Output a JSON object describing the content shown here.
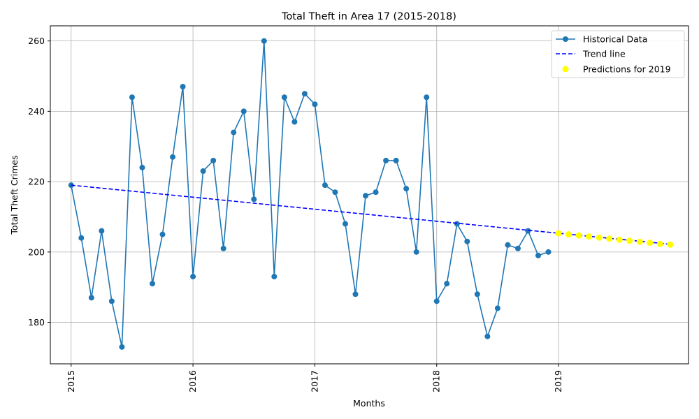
{
  "chart_data": {
    "type": "line",
    "title": "Total Theft in Area 17 (2015-2018)",
    "xlabel": "Months",
    "ylabel": "Total Theft Crimes",
    "x_ticks": [
      "2015",
      "2016",
      "2017",
      "2018",
      "2019"
    ],
    "y_ticks": [
      180,
      200,
      220,
      240,
      260
    ],
    "ylim": [
      168.2,
      264.3
    ],
    "xlim": [
      "2014-11",
      "2020-02"
    ],
    "grid": true,
    "legend_position": "top-right",
    "series": [
      {
        "name": "Historical Data",
        "style": "line-marker",
        "color": "#1f77b4",
        "x": [
          "2015-01",
          "2015-02",
          "2015-03",
          "2015-04",
          "2015-05",
          "2015-06",
          "2015-07",
          "2015-08",
          "2015-09",
          "2015-10",
          "2015-11",
          "2015-12",
          "2016-01",
          "2016-02",
          "2016-03",
          "2016-04",
          "2016-05",
          "2016-06",
          "2016-07",
          "2016-08",
          "2016-09",
          "2016-10",
          "2016-11",
          "2016-12",
          "2017-01",
          "2017-02",
          "2017-03",
          "2017-04",
          "2017-05",
          "2017-06",
          "2017-07",
          "2017-08",
          "2017-09",
          "2017-10",
          "2017-11",
          "2017-12",
          "2018-01",
          "2018-02",
          "2018-03",
          "2018-04",
          "2018-05",
          "2018-06",
          "2018-07",
          "2018-08",
          "2018-09",
          "2018-10",
          "2018-11",
          "2018-12"
        ],
        "values": [
          219,
          204,
          187,
          206,
          186,
          173,
          244,
          224,
          191,
          205,
          227,
          247,
          193,
          223,
          226,
          201,
          234,
          240,
          215,
          260,
          193,
          244,
          237,
          245,
          242,
          219,
          217,
          208,
          188,
          216,
          217,
          226,
          226,
          218,
          200,
          244,
          186,
          191,
          208,
          203,
          188,
          176,
          184,
          202,
          201,
          206,
          199,
          200
        ]
      },
      {
        "name": "Trend line",
        "style": "dashed",
        "color": "#0000ff",
        "x": [
          "2015-01",
          "2019-12"
        ],
        "values": [
          219.0,
          202.2
        ]
      },
      {
        "name": "Predictions for 2019",
        "style": "scatter",
        "color": "#ffff00",
        "x": [
          "2019-01",
          "2019-02",
          "2019-03",
          "2019-04",
          "2019-05",
          "2019-06",
          "2019-07",
          "2019-08",
          "2019-09",
          "2019-10",
          "2019-11",
          "2019-12"
        ],
        "values": [
          205.3,
          205.0,
          204.7,
          204.4,
          204.1,
          203.8,
          203.5,
          203.2,
          202.9,
          202.6,
          202.3,
          202.1
        ]
      }
    ]
  }
}
